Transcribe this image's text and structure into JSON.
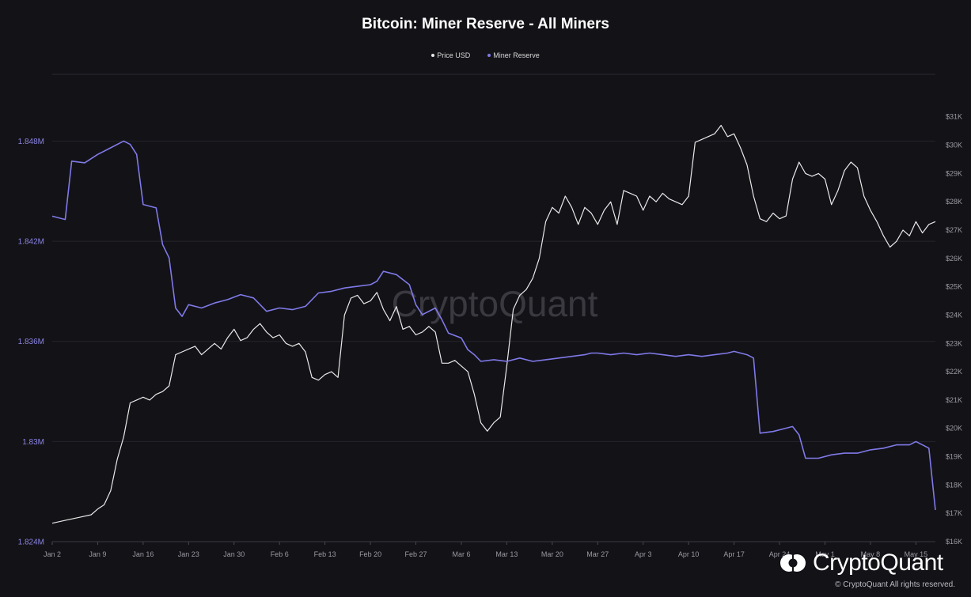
{
  "chart_data": {
    "type": "line",
    "title": "Bitcoin: Miner Reserve - All Miners",
    "legend_position": "top-center",
    "grid": true,
    "x_ticks": [
      "Jan 2",
      "Jan 9",
      "Jan 16",
      "Jan 23",
      "Jan 30",
      "Feb 6",
      "Feb 13",
      "Feb 20",
      "Feb 27",
      "Mar 6",
      "Mar 13",
      "Mar 20",
      "Mar 27",
      "Apr 3",
      "Apr 10",
      "Apr 17",
      "Apr 24",
      "May 1",
      "May 8",
      "May 15"
    ],
    "x_tick_days": [
      1,
      8,
      15,
      22,
      29,
      36,
      43,
      50,
      57,
      64,
      71,
      78,
      85,
      92,
      99,
      106,
      113,
      120,
      127,
      134
    ],
    "xlim_days": [
      1,
      137
    ],
    "y_left": {
      "ticks": [
        "1.824M",
        "1.83M",
        "1.836M",
        "1.842M",
        "1.848M"
      ],
      "range": [
        1.824,
        1.852
      ]
    },
    "y_right": {
      "ticks": [
        "$16K",
        "$17K",
        "$18K",
        "$19K",
        "$20K",
        "$21K",
        "$22K",
        "$23K",
        "$24K",
        "$25K",
        "$26K",
        "$27K",
        "$28K",
        "$29K",
        "$30K",
        "$31K"
      ],
      "range": [
        16000,
        32500
      ]
    },
    "series": [
      {
        "name": "Price USD",
        "axis": "right",
        "color": "#e9e9e9",
        "points": [
          [
            1,
            16650
          ],
          [
            3,
            16750
          ],
          [
            5,
            16850
          ],
          [
            7,
            16950
          ],
          [
            8,
            17150
          ],
          [
            9,
            17300
          ],
          [
            10,
            17800
          ],
          [
            11,
            18900
          ],
          [
            12,
            19700
          ],
          [
            13,
            20900
          ],
          [
            14,
            21000
          ],
          [
            15,
            21100
          ],
          [
            16,
            21000
          ],
          [
            17,
            21200
          ],
          [
            18,
            21300
          ],
          [
            19,
            21500
          ],
          [
            20,
            22600
          ],
          [
            21,
            22700
          ],
          [
            22,
            22800
          ],
          [
            23,
            22900
          ],
          [
            24,
            22600
          ],
          [
            25,
            22800
          ],
          [
            26,
            23000
          ],
          [
            27,
            22800
          ],
          [
            28,
            23200
          ],
          [
            29,
            23500
          ],
          [
            30,
            23100
          ],
          [
            31,
            23200
          ],
          [
            32,
            23500
          ],
          [
            33,
            23700
          ],
          [
            34,
            23400
          ],
          [
            35,
            23200
          ],
          [
            36,
            23300
          ],
          [
            37,
            23000
          ],
          [
            38,
            22900
          ],
          [
            39,
            23000
          ],
          [
            40,
            22700
          ],
          [
            41,
            21800
          ],
          [
            42,
            21700
          ],
          [
            43,
            21900
          ],
          [
            44,
            22000
          ],
          [
            45,
            21800
          ],
          [
            46,
            24000
          ],
          [
            47,
            24600
          ],
          [
            48,
            24700
          ],
          [
            49,
            24400
          ],
          [
            50,
            24500
          ],
          [
            51,
            24800
          ],
          [
            52,
            24200
          ],
          [
            53,
            23800
          ],
          [
            54,
            24300
          ],
          [
            55,
            23500
          ],
          [
            56,
            23600
          ],
          [
            57,
            23300
          ],
          [
            58,
            23400
          ],
          [
            59,
            23600
          ],
          [
            60,
            23400
          ],
          [
            61,
            22300
          ],
          [
            62,
            22300
          ],
          [
            63,
            22400
          ],
          [
            64,
            22200
          ],
          [
            65,
            22000
          ],
          [
            66,
            21200
          ],
          [
            67,
            20200
          ],
          [
            68,
            19900
          ],
          [
            69,
            20200
          ],
          [
            70,
            20400
          ],
          [
            71,
            22200
          ],
          [
            72,
            24200
          ],
          [
            73,
            24700
          ],
          [
            74,
            24900
          ],
          [
            75,
            25300
          ],
          [
            76,
            26000
          ],
          [
            77,
            27300
          ],
          [
            78,
            27800
          ],
          [
            79,
            27600
          ],
          [
            80,
            28200
          ],
          [
            81,
            27800
          ],
          [
            82,
            27200
          ],
          [
            83,
            27800
          ],
          [
            84,
            27600
          ],
          [
            85,
            27200
          ],
          [
            86,
            27700
          ],
          [
            87,
            28000
          ],
          [
            88,
            27200
          ],
          [
            89,
            28400
          ],
          [
            90,
            28300
          ],
          [
            91,
            28200
          ],
          [
            92,
            27700
          ],
          [
            93,
            28200
          ],
          [
            94,
            28000
          ],
          [
            95,
            28300
          ],
          [
            96,
            28100
          ],
          [
            97,
            28000
          ],
          [
            98,
            27900
          ],
          [
            99,
            28200
          ],
          [
            100,
            30100
          ],
          [
            101,
            30200
          ],
          [
            102,
            30300
          ],
          [
            103,
            30400
          ],
          [
            104,
            30700
          ],
          [
            105,
            30300
          ],
          [
            106,
            30400
          ],
          [
            107,
            29900
          ],
          [
            108,
            29300
          ],
          [
            109,
            28200
          ],
          [
            110,
            27400
          ],
          [
            111,
            27300
          ],
          [
            112,
            27600
          ],
          [
            113,
            27400
          ],
          [
            114,
            27500
          ],
          [
            115,
            28800
          ],
          [
            116,
            29400
          ],
          [
            117,
            29000
          ],
          [
            118,
            28900
          ],
          [
            119,
            29000
          ],
          [
            120,
            28800
          ],
          [
            121,
            27900
          ],
          [
            122,
            28400
          ],
          [
            123,
            29100
          ],
          [
            124,
            29400
          ],
          [
            125,
            29200
          ],
          [
            126,
            28200
          ],
          [
            127,
            27700
          ],
          [
            128,
            27300
          ],
          [
            129,
            26800
          ],
          [
            130,
            26400
          ],
          [
            131,
            26600
          ],
          [
            132,
            27000
          ],
          [
            133,
            26800
          ],
          [
            134,
            27300
          ],
          [
            135,
            26900
          ],
          [
            136,
            27200
          ],
          [
            137,
            27300
          ]
        ]
      },
      {
        "name": "Miner Reserve",
        "axis": "left",
        "color": "#7f7ae8",
        "points": [
          [
            1,
            1.8435
          ],
          [
            3,
            1.8433
          ],
          [
            4,
            1.8468
          ],
          [
            6,
            1.8467
          ],
          [
            8,
            1.8472
          ],
          [
            10,
            1.8476
          ],
          [
            12,
            1.848
          ],
          [
            13,
            1.8478
          ],
          [
            14,
            1.8472
          ],
          [
            15,
            1.8442
          ],
          [
            17,
            1.844
          ],
          [
            18,
            1.8418
          ],
          [
            19,
            1.841
          ],
          [
            20,
            1.838
          ],
          [
            21,
            1.8375
          ],
          [
            22,
            1.8382
          ],
          [
            24,
            1.838
          ],
          [
            26,
            1.8383
          ],
          [
            28,
            1.8385
          ],
          [
            30,
            1.8388
          ],
          [
            32,
            1.8386
          ],
          [
            34,
            1.8378
          ],
          [
            36,
            1.838
          ],
          [
            38,
            1.8379
          ],
          [
            40,
            1.8381
          ],
          [
            42,
            1.8389
          ],
          [
            44,
            1.839
          ],
          [
            46,
            1.8392
          ],
          [
            48,
            1.8393
          ],
          [
            50,
            1.8394
          ],
          [
            51,
            1.8396
          ],
          [
            52,
            1.8402
          ],
          [
            54,
            1.84
          ],
          [
            56,
            1.8394
          ],
          [
            57,
            1.8382
          ],
          [
            58,
            1.8376
          ],
          [
            60,
            1.838
          ],
          [
            61,
            1.8373
          ],
          [
            62,
            1.8365
          ],
          [
            64,
            1.8362
          ],
          [
            65,
            1.8355
          ],
          [
            66,
            1.8352
          ],
          [
            67,
            1.8348
          ],
          [
            69,
            1.8349
          ],
          [
            71,
            1.8348
          ],
          [
            73,
            1.835
          ],
          [
            75,
            1.8348
          ],
          [
            77,
            1.8349
          ],
          [
            79,
            1.835
          ],
          [
            81,
            1.8351
          ],
          [
            83,
            1.8352
          ],
          [
            84,
            1.8353
          ],
          [
            85,
            1.8353
          ],
          [
            87,
            1.8352
          ],
          [
            89,
            1.8353
          ],
          [
            91,
            1.8352
          ],
          [
            93,
            1.8353
          ],
          [
            95,
            1.8352
          ],
          [
            97,
            1.8351
          ],
          [
            99,
            1.8352
          ],
          [
            101,
            1.8351
          ],
          [
            103,
            1.8352
          ],
          [
            105,
            1.8353
          ],
          [
            106,
            1.8354
          ],
          [
            107,
            1.8353
          ],
          [
            108,
            1.8352
          ],
          [
            109,
            1.835
          ],
          [
            110,
            1.8305
          ],
          [
            112,
            1.8306
          ],
          [
            114,
            1.8308
          ],
          [
            115,
            1.8309
          ],
          [
            116,
            1.8304
          ],
          [
            117,
            1.829
          ],
          [
            119,
            1.829
          ],
          [
            121,
            1.8292
          ],
          [
            123,
            1.8293
          ],
          [
            125,
            1.8293
          ],
          [
            127,
            1.8295
          ],
          [
            129,
            1.8296
          ],
          [
            131,
            1.8298
          ],
          [
            133,
            1.8298
          ],
          [
            134,
            1.83
          ],
          [
            135,
            1.8298
          ],
          [
            136,
            1.8296
          ],
          [
            137,
            1.8259
          ]
        ]
      }
    ]
  },
  "watermark": "CryptoQuant",
  "brand": {
    "name": "CryptoQuant",
    "logo_icon": "cryptoquant-logo-icon"
  },
  "copyright": "© CryptoQuant All rights reserved."
}
